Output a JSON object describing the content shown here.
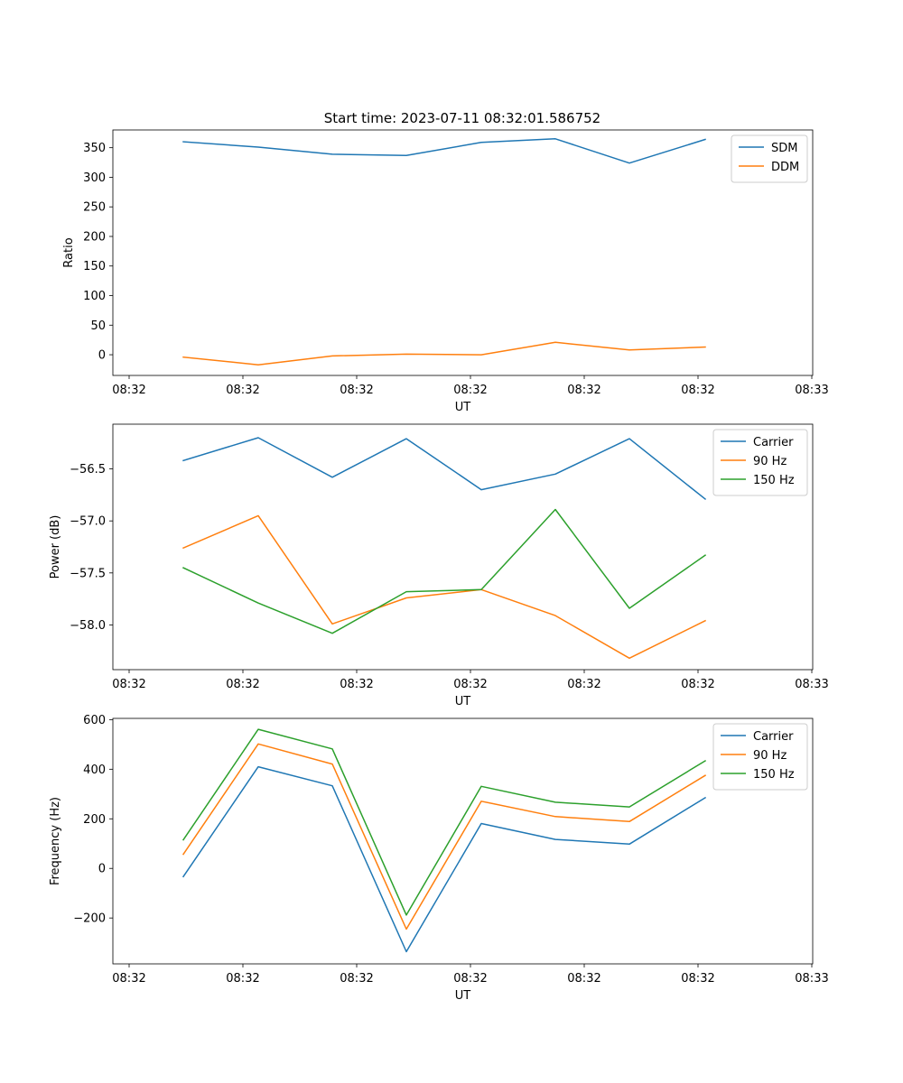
{
  "figure": {
    "title": "Start time: 2023-07-11 08:32:01.586752"
  },
  "chart_data": [
    {
      "type": "line",
      "title": "Start time: 2023-07-11 08:32:01.586752",
      "xlabel": "UT",
      "ylabel": "Ratio",
      "x_tick_labels": [
        "08:32",
        "08:32",
        "08:32",
        "08:32",
        "08:32",
        "08:32",
        "08:33"
      ],
      "ylim": [
        -35,
        380
      ],
      "y_ticks": [
        0,
        50,
        100,
        150,
        200,
        250,
        300,
        350
      ],
      "legend": "upper right",
      "series": [
        {
          "name": "SDM",
          "color": "#1f77b4",
          "values": [
            360,
            351,
            339,
            337,
            359,
            365,
            324,
            364
          ]
        },
        {
          "name": "DDM",
          "color": "#ff7f0e",
          "values": [
            -4,
            -17,
            -2,
            1,
            0,
            21,
            8,
            13
          ]
        }
      ]
    },
    {
      "type": "line",
      "title": "",
      "xlabel": "UT",
      "ylabel": "Power (dB)",
      "x_tick_labels": [
        "08:32",
        "08:32",
        "08:32",
        "08:32",
        "08:32",
        "08:32",
        "08:33"
      ],
      "ylim": [
        -58.43,
        -56.07
      ],
      "y_ticks": [
        -56.5,
        -57.0,
        -57.5,
        -58.0
      ],
      "y_tick_labels": [
        "−56.5",
        "−57.0",
        "−57.5",
        "−58.0"
      ],
      "legend": "upper right",
      "series": [
        {
          "name": "Carrier",
          "color": "#1f77b4",
          "values": [
            -56.42,
            -56.2,
            -56.58,
            -56.21,
            -56.7,
            -56.55,
            -56.21,
            -56.79
          ]
        },
        {
          "name": "90 Hz",
          "color": "#ff7f0e",
          "values": [
            -57.26,
            -56.95,
            -57.99,
            -57.74,
            -57.66,
            -57.91,
            -58.32,
            -57.96
          ]
        },
        {
          "name": "150 Hz",
          "color": "#2ca02c",
          "values": [
            -57.45,
            -57.79,
            -58.08,
            -57.68,
            -57.66,
            -56.89,
            -57.84,
            -57.33
          ]
        }
      ]
    },
    {
      "type": "line",
      "title": "",
      "xlabel": "UT",
      "ylabel": "Frequency (Hz)",
      "x_tick_labels": [
        "08:32",
        "08:32",
        "08:32",
        "08:32",
        "08:32",
        "08:32",
        "08:33"
      ],
      "ylim": [
        -385,
        605
      ],
      "y_ticks": [
        600,
        400,
        200,
        0,
        -200
      ],
      "y_tick_labels": [
        "600",
        "400",
        "200",
        "0",
        "−200"
      ],
      "legend": "upper right",
      "series": [
        {
          "name": "Carrier",
          "color": "#1f77b4",
          "values": [
            -33,
            410,
            333,
            -336,
            181,
            117,
            98,
            285
          ]
        },
        {
          "name": "90 Hz",
          "color": "#ff7f0e",
          "values": [
            57,
            502,
            421,
            -245,
            271,
            209,
            189,
            375
          ]
        },
        {
          "name": "150 Hz",
          "color": "#2ca02c",
          "values": [
            115,
            561,
            482,
            -188,
            331,
            267,
            248,
            434
          ]
        }
      ]
    }
  ]
}
